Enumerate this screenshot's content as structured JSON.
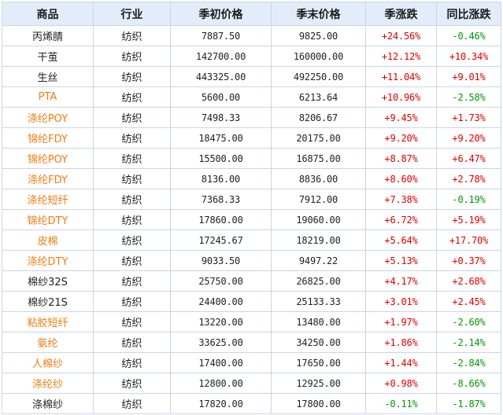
{
  "headers": [
    "商品",
    "行业",
    "季初价格",
    "季末价格",
    "季涨跌",
    "同比涨跌"
  ],
  "colors": {
    "link": "#f07c12",
    "up": "#e00000",
    "down": "#009900",
    "header_bg": "#e3edf9",
    "border": "#c9d6e6"
  },
  "rows": [
    {
      "name": "丙烯腈",
      "link": false,
      "industry": "纺织",
      "start": "7887.50",
      "end": "9825.00",
      "qoq": "+24.56%",
      "yoy": "-0.46%"
    },
    {
      "name": "干茧",
      "link": false,
      "industry": "纺织",
      "start": "142700.00",
      "end": "160000.00",
      "qoq": "+12.12%",
      "yoy": "+10.34%"
    },
    {
      "name": "生丝",
      "link": false,
      "industry": "纺织",
      "start": "443325.00",
      "end": "492250.00",
      "qoq": "+11.04%",
      "yoy": "+9.01%"
    },
    {
      "name": "PTA",
      "link": true,
      "industry": "纺织",
      "start": "5600.00",
      "end": "6213.64",
      "qoq": "+10.96%",
      "yoy": "-2.58%"
    },
    {
      "name": "涤纶POY",
      "link": true,
      "industry": "纺织",
      "start": "7498.33",
      "end": "8206.67",
      "qoq": "+9.45%",
      "yoy": "+1.73%"
    },
    {
      "name": "锦纶FDY",
      "link": true,
      "industry": "纺织",
      "start": "18475.00",
      "end": "20175.00",
      "qoq": "+9.20%",
      "yoy": "+9.20%"
    },
    {
      "name": "锦纶POY",
      "link": true,
      "industry": "纺织",
      "start": "15500.00",
      "end": "16875.00",
      "qoq": "+8.87%",
      "yoy": "+6.47%"
    },
    {
      "name": "涤纶FDY",
      "link": true,
      "industry": "纺织",
      "start": "8136.00",
      "end": "8836.00",
      "qoq": "+8.60%",
      "yoy": "+2.78%"
    },
    {
      "name": "涤纶短纤",
      "link": true,
      "industry": "纺织",
      "start": "7368.33",
      "end": "7912.00",
      "qoq": "+7.38%",
      "yoy": "-0.19%"
    },
    {
      "name": "锦纶DTY",
      "link": true,
      "industry": "纺织",
      "start": "17860.00",
      "end": "19060.00",
      "qoq": "+6.72%",
      "yoy": "+5.19%"
    },
    {
      "name": "皮棉",
      "link": true,
      "industry": "纺织",
      "start": "17245.67",
      "end": "18219.00",
      "qoq": "+5.64%",
      "yoy": "+17.70%"
    },
    {
      "name": "涤纶DTY",
      "link": true,
      "industry": "纺织",
      "start": "9033.50",
      "end": "9497.22",
      "qoq": "+5.13%",
      "yoy": "+0.37%"
    },
    {
      "name": "棉纱32S",
      "link": false,
      "industry": "纺织",
      "start": "25750.00",
      "end": "26825.00",
      "qoq": "+4.17%",
      "yoy": "+2.68%"
    },
    {
      "name": "棉纱21S",
      "link": false,
      "industry": "纺织",
      "start": "24400.00",
      "end": "25133.33",
      "qoq": "+3.01%",
      "yoy": "+2.45%"
    },
    {
      "name": "粘胶短纤",
      "link": true,
      "industry": "纺织",
      "start": "13220.00",
      "end": "13480.00",
      "qoq": "+1.97%",
      "yoy": "-2.60%"
    },
    {
      "name": "氨纶",
      "link": true,
      "industry": "纺织",
      "start": "33625.00",
      "end": "34250.00",
      "qoq": "+1.86%",
      "yoy": "-2.14%"
    },
    {
      "name": "人棉纱",
      "link": true,
      "industry": "纺织",
      "start": "17400.00",
      "end": "17650.00",
      "qoq": "+1.44%",
      "yoy": "-2.84%"
    },
    {
      "name": "涤纶纱",
      "link": true,
      "industry": "纺织",
      "start": "12800.00",
      "end": "12925.00",
      "qoq": "+0.98%",
      "yoy": "-8.66%"
    },
    {
      "name": "涤棉纱",
      "link": false,
      "industry": "纺织",
      "start": "17820.00",
      "end": "17800.00",
      "qoq": "-0.11%",
      "yoy": "-1.87%"
    }
  ]
}
